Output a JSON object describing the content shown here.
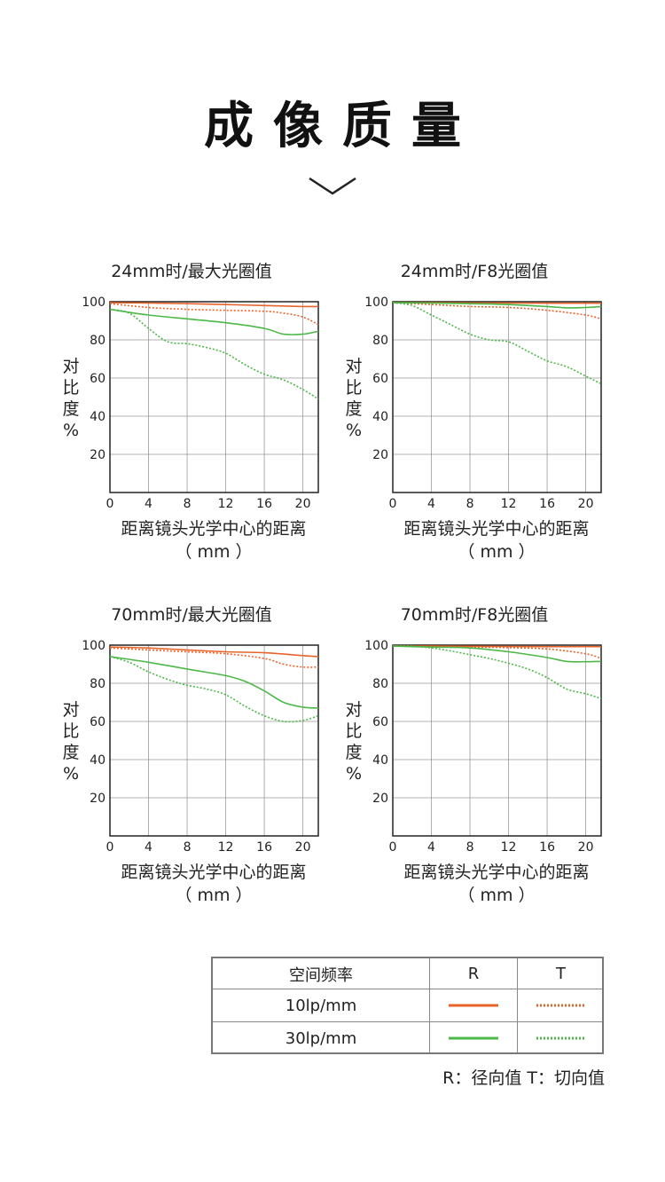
{
  "page_title": "成像质量",
  "charts_axis": {
    "ylabel_chars": [
      "对",
      "比",
      "度",
      "%"
    ],
    "xlabel_line1": "距离镜头光学中心的距离",
    "xlabel_line2": "（ mm ）",
    "y_ticks": [
      "100",
      "80",
      "60",
      "40",
      "20"
    ],
    "x_ticks": [
      "0",
      "4",
      "8",
      "12",
      "16",
      "20"
    ]
  },
  "chart_data": [
    {
      "type": "line",
      "title": "24mm时/最大光圈值",
      "xlabel": "距离镜头光学中心的距离 （ mm ）",
      "ylabel": "对比度%",
      "xlim": [
        0,
        21.6
      ],
      "ylim": [
        0,
        100
      ],
      "grid": true,
      "series": [
        {
          "key": "R10",
          "x": [
            0,
            4,
            8,
            12,
            16,
            20,
            21.6
          ],
          "values": [
            99.5,
            99.3,
            99,
            98.5,
            98,
            97.5,
            97.5
          ]
        },
        {
          "key": "T10",
          "x": [
            0,
            4,
            8,
            12,
            16,
            18,
            20,
            21.6
          ],
          "values": [
            99,
            97,
            96,
            95.5,
            95,
            94,
            92,
            88
          ]
        },
        {
          "key": "R30",
          "x": [
            0,
            4,
            8,
            12,
            16,
            18,
            20,
            21.6
          ],
          "values": [
            96,
            93,
            91,
            89,
            86,
            83,
            83,
            84.5
          ]
        },
        {
          "key": "T30",
          "x": [
            0,
            2,
            4,
            6,
            8,
            10,
            12,
            14,
            16,
            18,
            20,
            21.6
          ],
          "values": [
            96,
            94,
            86,
            79,
            78,
            76,
            73,
            67,
            62,
            59,
            54,
            49
          ]
        }
      ]
    },
    {
      "type": "line",
      "title": "24mm时/F8光圈值",
      "xlabel": "距离镜头光学中心的距离 （ mm ）",
      "ylabel": "对比度%",
      "xlim": [
        0,
        21.6
      ],
      "ylim": [
        0,
        100
      ],
      "grid": true,
      "series": [
        {
          "key": "R10",
          "x": [
            0,
            4,
            8,
            12,
            16,
            20,
            21.6
          ],
          "values": [
            99.5,
            99.5,
            99.4,
            99.3,
            99.2,
            99.2,
            99.2
          ]
        },
        {
          "key": "T10",
          "x": [
            0,
            4,
            8,
            12,
            16,
            20,
            21.6
          ],
          "values": [
            99.5,
            98.5,
            97.5,
            97,
            95.5,
            93,
            91
          ]
        },
        {
          "key": "R30",
          "x": [
            0,
            4,
            8,
            12,
            16,
            18,
            20,
            21.6
          ],
          "values": [
            99.5,
            99.3,
            99,
            98.5,
            97.5,
            96.8,
            97,
            97.5
          ]
        },
        {
          "key": "T30",
          "x": [
            0,
            2,
            4,
            6,
            8,
            10,
            12,
            14,
            16,
            18,
            20,
            21.6
          ],
          "values": [
            99.5,
            98,
            93,
            88,
            83,
            80,
            79,
            74,
            69,
            66,
            61,
            57
          ]
        }
      ]
    },
    {
      "type": "line",
      "title": "70mm时/最大光圈值",
      "xlabel": "距离镜头光学中心的距离 （ mm ）",
      "ylabel": "对比度%",
      "xlim": [
        0,
        21.6
      ],
      "ylim": [
        0,
        100
      ],
      "grid": true,
      "series": [
        {
          "key": "R10",
          "x": [
            0,
            4,
            8,
            12,
            16,
            20,
            21.6
          ],
          "values": [
            99,
            98.5,
            97.5,
            96.5,
            96,
            94.5,
            94
          ]
        },
        {
          "key": "T10",
          "x": [
            0,
            4,
            8,
            12,
            16,
            18,
            20,
            21.6
          ],
          "values": [
            98.5,
            97.5,
            96.5,
            95.5,
            93,
            90,
            88.5,
            88.5
          ]
        },
        {
          "key": "R30",
          "x": [
            0,
            4,
            8,
            12,
            14,
            16,
            18,
            20,
            21.6
          ],
          "values": [
            94,
            91,
            87.5,
            84,
            81,
            76,
            70,
            67.5,
            67
          ]
        },
        {
          "key": "T30",
          "x": [
            0,
            2,
            4,
            6,
            8,
            10,
            12,
            14,
            16,
            18,
            20,
            21.6
          ],
          "values": [
            94,
            91,
            86,
            82,
            79,
            77,
            74,
            68,
            63,
            60,
            60.5,
            63
          ]
        }
      ]
    },
    {
      "type": "line",
      "title": "70mm时/F8光圈值",
      "xlabel": "距离镜头光学中心的距离 （ mm ）",
      "ylabel": "对比度%",
      "xlim": [
        0,
        21.6
      ],
      "ylim": [
        0,
        100
      ],
      "grid": true,
      "series": [
        {
          "key": "R10",
          "x": [
            0,
            4,
            8,
            12,
            16,
            20,
            21.6
          ],
          "values": [
            99.5,
            99.5,
            99.4,
            99.3,
            99.2,
            99.2,
            99.2
          ]
        },
        {
          "key": "T10",
          "x": [
            0,
            4,
            8,
            12,
            16,
            20,
            21.6
          ],
          "values": [
            99.5,
            99.3,
            99,
            98.7,
            98,
            95.5,
            93
          ]
        },
        {
          "key": "R30",
          "x": [
            0,
            4,
            8,
            12,
            16,
            18,
            20,
            21.6
          ],
          "values": [
            99.5,
            99,
            98.5,
            96.5,
            93.5,
            91.5,
            91.3,
            91.5
          ]
        },
        {
          "key": "T30",
          "x": [
            0,
            2,
            4,
            6,
            8,
            10,
            12,
            14,
            16,
            18,
            20,
            21.6
          ],
          "values": [
            99.5,
            99.5,
            98.5,
            97,
            95,
            93,
            90.5,
            87.5,
            83,
            77,
            74.5,
            72
          ]
        }
      ]
    }
  ],
  "legend": {
    "header_freq": "空间频率",
    "header_r": "R",
    "header_t": "T",
    "row1_label": "10lp/mm",
    "row2_label": "30lp/mm",
    "color_10": "#e8632a",
    "color_30": "#4cb848",
    "note": "R：径向值  T：切向值"
  }
}
